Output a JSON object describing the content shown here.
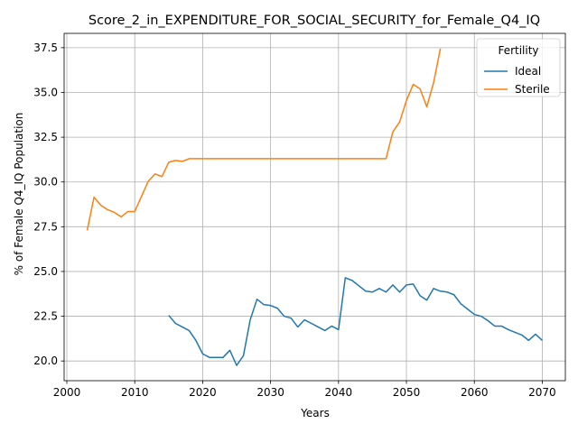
{
  "chart_data": {
    "type": "line",
    "title": "Score_2_in_EXPENDITURE_FOR_SOCIAL_SECURITY_for_Female_Q4_IQ",
    "xlabel": "Years",
    "ylabel": "% of Female Q4_IQ Population",
    "xlim": [
      1999.6,
      2073.4
    ],
    "ylim": [
      18.9,
      38.3
    ],
    "xticks": [
      2000,
      2010,
      2020,
      2030,
      2040,
      2050,
      2060,
      2070
    ],
    "yticks": [
      20.0,
      22.5,
      25.0,
      27.5,
      30.0,
      32.5,
      35.0,
      37.5
    ],
    "ytick_labels": [
      "20.0",
      "22.5",
      "25.0",
      "27.5",
      "30.0",
      "32.5",
      "35.0",
      "37.5"
    ],
    "grid": true,
    "legend": {
      "title": "Fertility",
      "placement": "top-right"
    },
    "series": [
      {
        "name": "Ideal",
        "color": "#1f77b4",
        "x": [
          2015,
          2016,
          2017,
          2018,
          2019,
          2020,
          2021,
          2022,
          2023,
          2024,
          2025,
          2026,
          2027,
          2028,
          2029,
          2030,
          2031,
          2032,
          2033,
          2034,
          2035,
          2036,
          2037,
          2038,
          2039,
          2040,
          2041,
          2042,
          2043,
          2044,
          2045,
          2046,
          2047,
          2048,
          2049,
          2050,
          2051,
          2052,
          2053,
          2054,
          2055,
          2056,
          2057,
          2058,
          2059,
          2060,
          2061,
          2062,
          2063,
          2064,
          2065,
          2066,
          2067,
          2068,
          2069,
          2070
        ],
        "y": [
          22.55,
          22.1,
          21.9,
          21.7,
          21.15,
          20.4,
          20.2,
          20.2,
          20.2,
          20.6,
          19.75,
          20.3,
          22.3,
          23.45,
          23.15,
          23.1,
          22.95,
          22.5,
          22.4,
          21.9,
          22.3,
          22.1,
          21.9,
          21.7,
          21.95,
          21.75,
          24.65,
          24.5,
          24.2,
          23.9,
          23.85,
          24.05,
          23.85,
          24.25,
          23.85,
          24.25,
          24.3,
          23.65,
          23.4,
          24.05,
          23.9,
          23.85,
          23.7,
          23.2,
          22.9,
          22.6,
          22.5,
          22.25,
          21.95,
          21.95,
          21.75,
          21.6,
          21.45,
          21.15,
          21.5,
          21.15
        ]
      },
      {
        "name": "Sterile",
        "color": "#ff7f0e",
        "x": [
          2003,
          2004,
          2005,
          2006,
          2007,
          2008,
          2009,
          2010,
          2011,
          2012,
          2013,
          2014,
          2015,
          2016,
          2017,
          2018,
          2019,
          2020,
          2021,
          2022,
          2023,
          2024,
          2025,
          2026,
          2027,
          2028,
          2029,
          2030,
          2031,
          2032,
          2033,
          2034,
          2035,
          2036,
          2037,
          2038,
          2039,
          2040,
          2041,
          2042,
          2043,
          2044,
          2045,
          2046,
          2047,
          2048,
          2049,
          2050,
          2051,
          2052,
          2053,
          2054,
          2055
        ],
        "y": [
          27.3,
          29.15,
          28.7,
          28.45,
          28.3,
          28.05,
          28.35,
          28.35,
          29.2,
          30.05,
          30.45,
          30.3,
          31.1,
          31.2,
          31.15,
          31.3,
          31.3,
          31.3,
          31.3,
          31.3,
          31.3,
          31.3,
          31.3,
          31.3,
          31.3,
          31.3,
          31.3,
          31.3,
          31.3,
          31.3,
          31.3,
          31.3,
          31.3,
          31.3,
          31.3,
          31.3,
          31.3,
          31.3,
          31.3,
          31.3,
          31.3,
          31.3,
          31.3,
          31.3,
          31.3,
          32.8,
          33.35,
          34.55,
          35.45,
          35.2,
          34.2,
          35.55,
          37.45
        ]
      }
    ]
  }
}
